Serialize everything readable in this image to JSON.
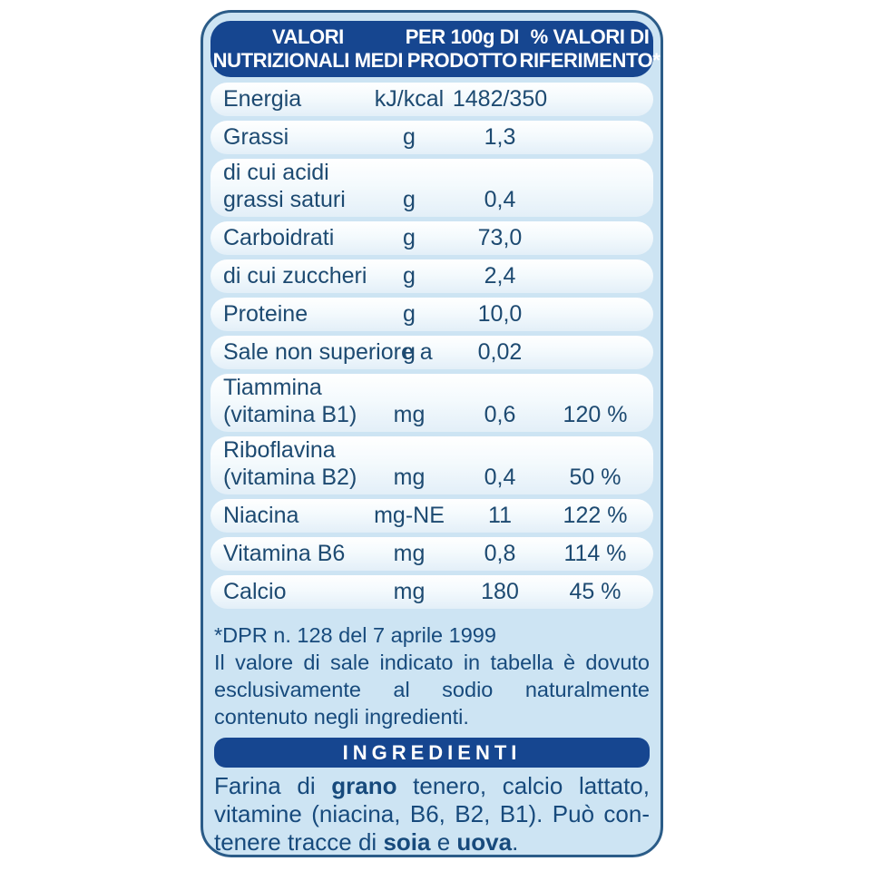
{
  "colors": {
    "bar_blue": "#164690",
    "card_background": "#cde4f3",
    "card_border": "#2b5c88",
    "row_pill_top": "#ffffff",
    "row_pill_bottom": "#e3eff8",
    "row_text": "#1d4a71",
    "note_text": "#174a7c",
    "header_text": "#ffffff"
  },
  "table": {
    "header": {
      "col1_line1": "VALORI",
      "col1_line2": "NUTRIZIONALI MEDI",
      "col2_line1": "PER 100g DI",
      "col2_line2": "PRODOTTO",
      "col3_line1": "% VALORI DI",
      "col3_line2": "RIFERIMENTO*"
    },
    "rows": [
      {
        "label": "Energia",
        "label2": "",
        "unit": "kJ/kcal",
        "value": "1482/350",
        "pct": ""
      },
      {
        "label": "Grassi",
        "label2": "",
        "unit": "g",
        "value": "1,3",
        "pct": ""
      },
      {
        "label": "di cui acidi",
        "label2": "grassi saturi",
        "unit": "g",
        "value": "0,4",
        "pct": ""
      },
      {
        "label": "Carboidrati",
        "label2": "",
        "unit": "g",
        "value": "73,0",
        "pct": ""
      },
      {
        "label": "di cui zuccheri",
        "label2": "",
        "unit": "g",
        "value": "2,4",
        "pct": ""
      },
      {
        "label": "Proteine",
        "label2": "",
        "unit": "g",
        "value": "10,0",
        "pct": ""
      },
      {
        "label": "Sale non superiore a",
        "label2": "",
        "unit": "g",
        "value": "0,02",
        "pct": ""
      },
      {
        "label": "Tiammina",
        "label2": "(vitamina B1)",
        "unit": "mg",
        "value": "0,6",
        "pct": "120 %"
      },
      {
        "label": "Riboflavina",
        "label2": "(vitamina B2)",
        "unit": "mg",
        "value": "0,4",
        "pct": "50 %"
      },
      {
        "label": "Niacina",
        "label2": "",
        "unit": "mg-NE",
        "value": "11",
        "pct": "122 %"
      },
      {
        "label": "Vitamina B6",
        "label2": "",
        "unit": "mg",
        "value": "0,8",
        "pct": "114 %"
      },
      {
        "label": "Calcio",
        "label2": "",
        "unit": "mg",
        "value": "180",
        "pct": "45 %"
      }
    ]
  },
  "footnote": {
    "line1": "*DPR n. 128 del 7 aprile 1999",
    "lines": [
      {
        "text": "Il valore di sale indicato in tabella è dovuto",
        "justify": true
      },
      {
        "text": "esclusivamente al sodio naturalmente",
        "justify": true
      },
      {
        "text": "contenuto negli ingredienti.",
        "justify": false
      }
    ]
  },
  "ingredients": {
    "title": "INGREDIENTI",
    "lines": [
      {
        "justify": true,
        "segments": [
          {
            "text": "Farina di ",
            "bold": false
          },
          {
            "text": "grano",
            "bold": true
          },
          {
            "text": " tenero, calcio lattato,",
            "bold": false
          }
        ]
      },
      {
        "justify": true,
        "segments": [
          {
            "text": "vitamine (niacina, B6, B2, B1). Può con-",
            "bold": false
          }
        ]
      },
      {
        "justify": false,
        "segments": [
          {
            "text": "tenere tracce di ",
            "bold": false
          },
          {
            "text": "soia",
            "bold": true
          },
          {
            "text": " e ",
            "bold": false
          },
          {
            "text": "uova",
            "bold": true
          },
          {
            "text": ".",
            "bold": false
          }
        ]
      }
    ]
  }
}
